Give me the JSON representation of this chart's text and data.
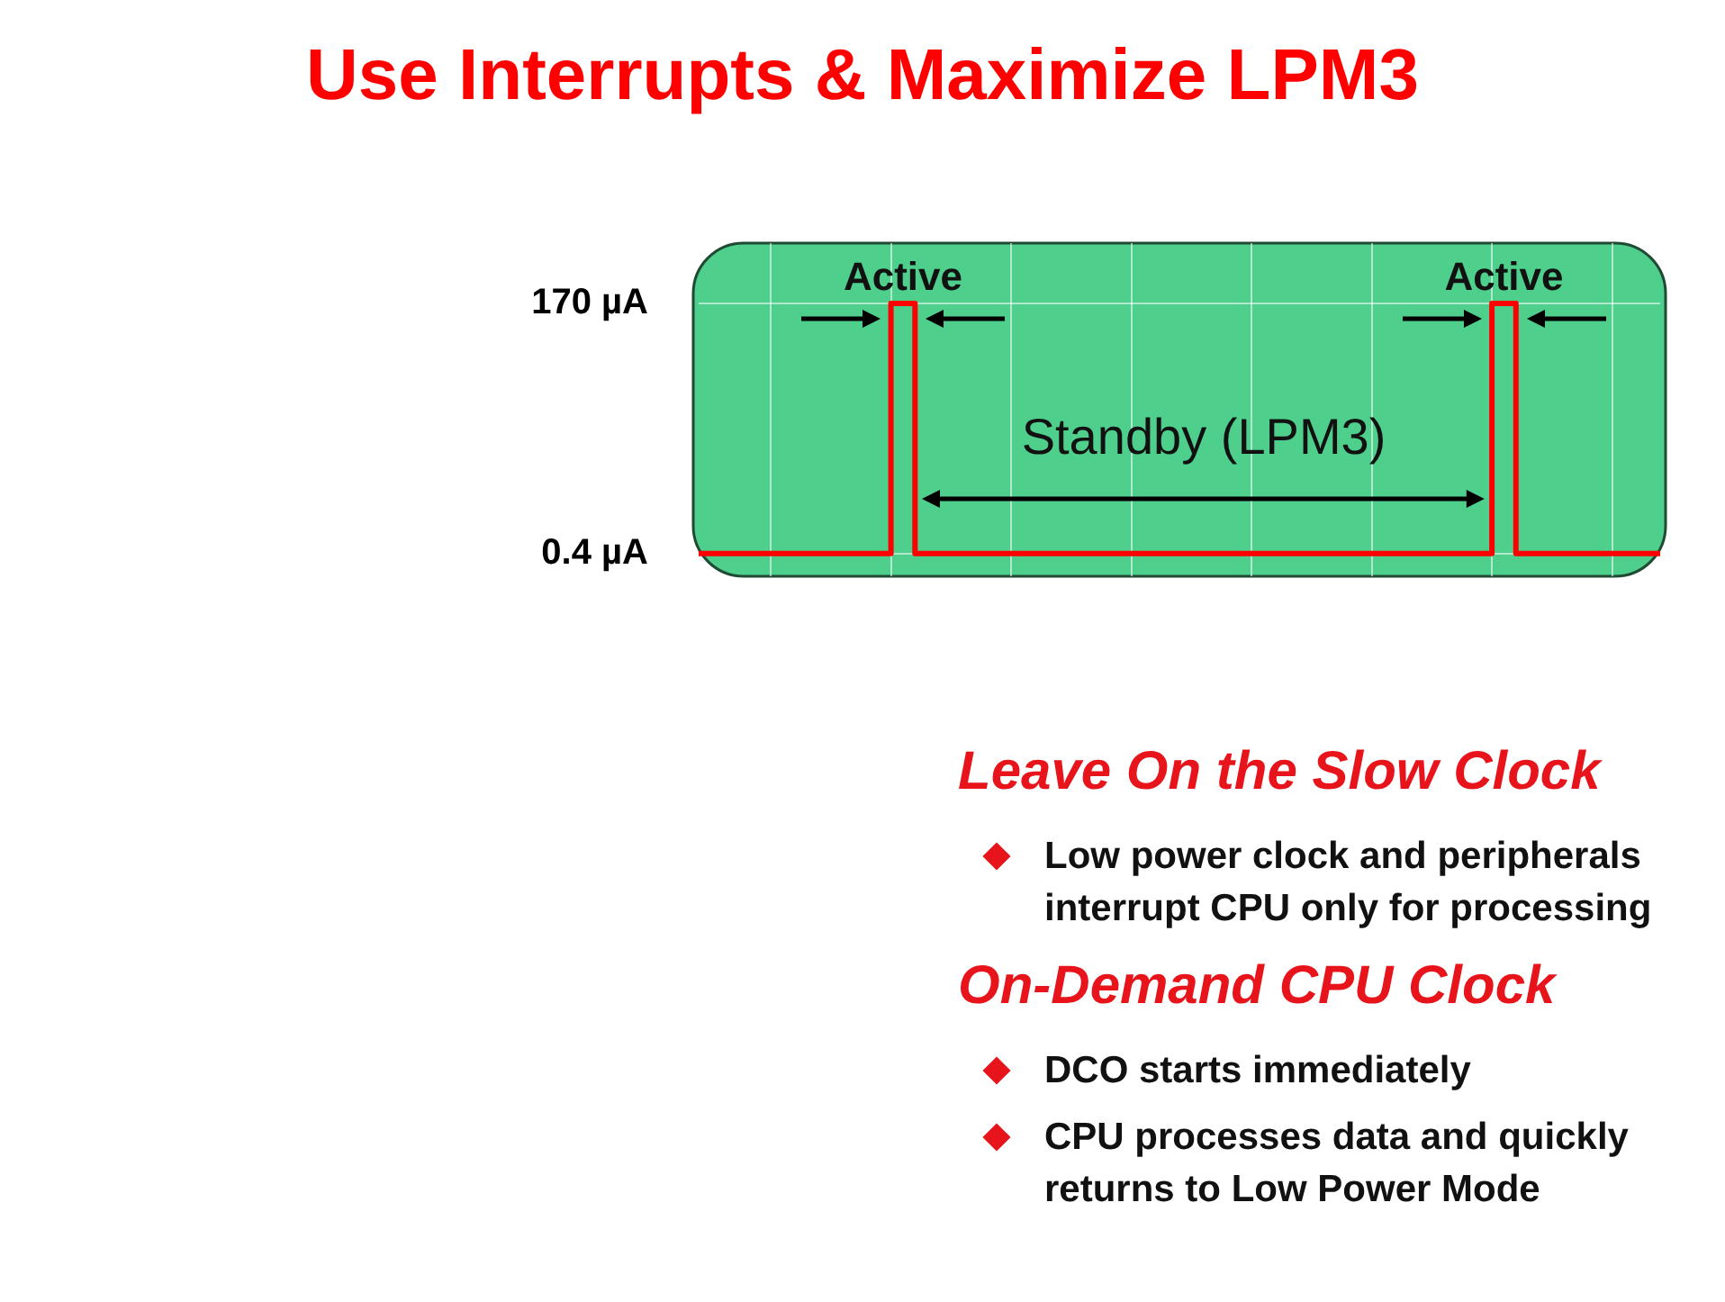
{
  "chart_data": {
    "type": "step",
    "title": "Use Interrupts & Maximize LPM3",
    "categories": [
      null,
      null,
      null,
      null,
      null,
      null,
      null,
      null,
      null,
      null,
      null,
      null,
      null,
      null,
      null,
      null,
      null,
      null,
      null,
      null,
      null,
      null,
      null,
      null,
      null,
      null,
      null,
      null,
      null,
      null,
      null,
      null,
      null,
      null,
      null,
      null,
      null,
      null,
      null,
      null,
      null
    ],
    "series": [
      {
        "color": "#ff0000",
        "values": [
          0.4,
          0.4,
          0.4,
          0.4,
          0.4,
          0.4,
          0.4,
          0.4,
          170,
          0.4,
          0.4,
          0.4,
          0.4,
          0.4,
          0.4,
          0.4,
          0.4,
          0.4,
          0.4,
          0.4,
          0.4,
          0.4,
          0.4,
          0.4,
          0.4,
          0.4,
          0.4,
          0.4,
          0.4,
          0.4,
          0.4,
          0.4,
          0.4,
          170,
          0.4,
          0.4,
          0.4,
          0.4,
          0.4,
          0.4,
          0.4
        ]
      }
    ],
    "ylim": [
      -15,
      211
    ],
    "yticks": [
      {
        "value": 0.4,
        "label": "0.4 µA"
      },
      {
        "value": 170,
        "label": "170 µA"
      }
    ],
    "tick_labels": "y",
    "grid": true,
    "annotations": [
      "Active",
      "Active",
      "Standby (LPM3)",
      "Leave On the Slow Clock",
      "Low power clock and peripherals interrupt CPU only for processing",
      "On-Demand CPU Clock",
      "DCO starts immediately",
      "CPU processes data and quickly returns to Low Power Mode"
    ]
  }
}
